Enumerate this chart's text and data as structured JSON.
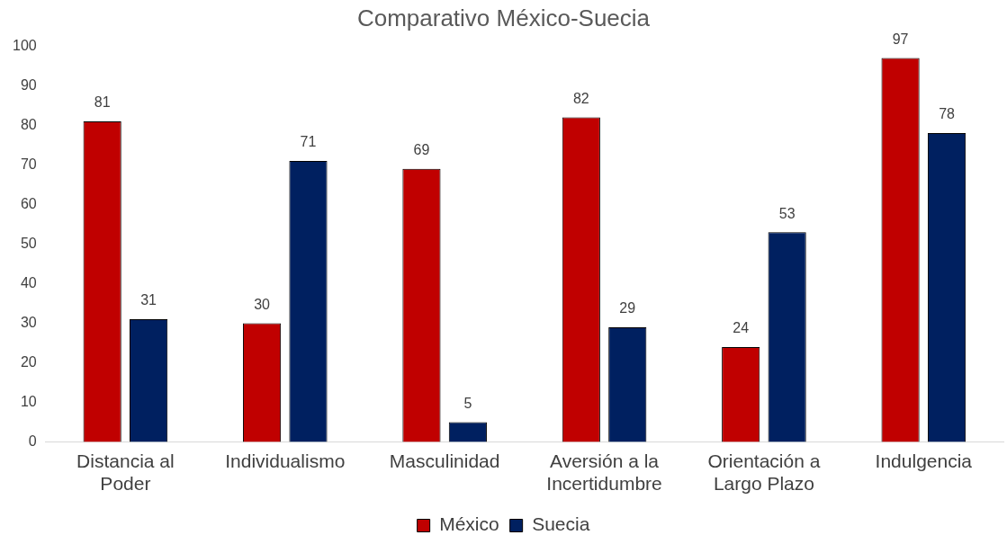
{
  "chart_data": {
    "type": "bar",
    "title": "Comparativo México-Suecia",
    "categories": [
      "Distancia al Poder",
      "Individualismo",
      "Masculinidad",
      "Aversión a la Incertidumbre",
      "Orientación a Largo Plazo",
      "Indulgencia"
    ],
    "series": [
      {
        "name": "México",
        "color": "#c00000",
        "values": [
          81,
          30,
          69,
          82,
          24,
          97
        ]
      },
      {
        "name": "Suecia",
        "color": "#002060",
        "values": [
          31,
          71,
          5,
          29,
          53,
          78
        ]
      }
    ],
    "ylim": [
      0,
      100
    ],
    "yticks": [
      0,
      10,
      20,
      30,
      40,
      50,
      60,
      70,
      80,
      90,
      100
    ],
    "grid": false,
    "legend": "bottom",
    "data_labels": true
  }
}
